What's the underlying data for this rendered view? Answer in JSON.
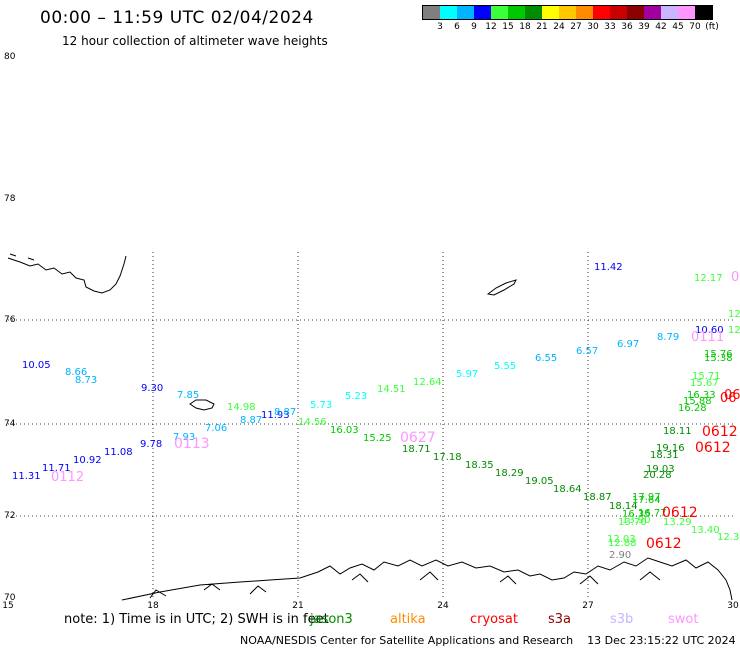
{
  "header": {
    "title": "00:00 – 11:59 UTC 02/04/2024",
    "subtitle": "12 hour collection of altimeter wave heights"
  },
  "legend": {
    "colors": [
      "#7f7f7f",
      "#00ffff",
      "#00b4ff",
      "#0000ff",
      "#3cff3c",
      "#00c800",
      "#008c00",
      "#ffff00",
      "#ffc800",
      "#ff8c00",
      "#ff0000",
      "#c80000",
      "#8b0000",
      "#a000a0",
      "#c8b4ff",
      "#ff96ff",
      "#000000"
    ],
    "labels": [
      "3",
      "6",
      "9",
      "12",
      "15",
      "18",
      "21",
      "24",
      "27",
      "30",
      "33",
      "36",
      "39",
      "42",
      "45",
      "70",
      "(ft)"
    ]
  },
  "axes": {
    "lat_labels": [
      "80",
      "78",
      "76",
      "74",
      "72",
      "70"
    ],
    "lon_labels": [
      "15",
      "18",
      "21",
      "24",
      "27",
      "30"
    ]
  },
  "observations": [
    {
      "v": "10.05",
      "c": "#0000ff"
    },
    {
      "v": "8.66",
      "c": "#00b4ff"
    },
    {
      "v": "8.73",
      "c": "#00b4ff"
    },
    {
      "v": "9.30",
      "c": "#0000ff"
    },
    {
      "v": "7.85",
      "c": "#00b4ff"
    },
    {
      "v": "14.98",
      "c": "#3cff3c"
    },
    {
      "v": "11.93",
      "c": "#0000ff"
    },
    {
      "v": "8.87",
      "c": "#00b4ff"
    },
    {
      "v": "8.87",
      "c": "#00b4ff"
    },
    {
      "v": "5.73",
      "c": "#00ffff"
    },
    {
      "v": "5.23",
      "c": "#00ffff"
    },
    {
      "v": "14.51",
      "c": "#3cff3c"
    },
    {
      "v": "12.64",
      "c": "#3cff3c"
    },
    {
      "v": "5.97",
      "c": "#00ffff"
    },
    {
      "v": "5.55",
      "c": "#00ffff"
    },
    {
      "v": "6.55",
      "c": "#00b4ff"
    },
    {
      "v": "6.57",
      "c": "#00b4ff"
    },
    {
      "v": "6.97",
      "c": "#00b4ff"
    },
    {
      "v": "8.79",
      "c": "#00b4ff"
    },
    {
      "v": "10.60",
      "c": "#0000ff"
    },
    {
      "v": "11.42",
      "c": "#0000ff"
    },
    {
      "v": "12.17",
      "c": "#3cff3c"
    },
    {
      "v": "7.93",
      "c": "#00b4ff"
    },
    {
      "v": "7.06",
      "c": "#00b4ff"
    },
    {
      "v": "14.56",
      "c": "#3cff3c"
    },
    {
      "v": "16.03",
      "c": "#00c800"
    },
    {
      "v": "15.25",
      "c": "#00c800"
    },
    {
      "v": "18.71",
      "c": "#008c00"
    },
    {
      "v": "17.18",
      "c": "#008c00"
    },
    {
      "v": "18.35",
      "c": "#008c00"
    },
    {
      "v": "18.29",
      "c": "#008c00"
    },
    {
      "v": "19.05",
      "c": "#008c00"
    },
    {
      "v": "18.64",
      "c": "#008c00"
    },
    {
      "v": "18.87",
      "c": "#008c00"
    },
    {
      "v": "9.78",
      "c": "#0000ff"
    },
    {
      "v": "11.08",
      "c": "#0000ff"
    },
    {
      "v": "10.92",
      "c": "#0000ff"
    },
    {
      "v": "11.71",
      "c": "#0000ff"
    },
    {
      "v": "11.31",
      "c": "#0000ff"
    },
    {
      "v": "18.11",
      "c": "#008c00"
    },
    {
      "v": "19.16",
      "c": "#008c00"
    },
    {
      "v": "18.31",
      "c": "#008c00"
    },
    {
      "v": "19.03",
      "c": "#008c00"
    },
    {
      "v": "20.28",
      "c": "#008c00"
    },
    {
      "v": "18.14",
      "c": "#008c00"
    },
    {
      "v": "17.97",
      "c": "#00c800"
    },
    {
      "v": "17.64",
      "c": "#00c800"
    },
    {
      "v": "16.35",
      "c": "#00c800"
    },
    {
      "v": "16.77",
      "c": "#00c800"
    },
    {
      "v": "13.70",
      "c": "#3cff3c"
    },
    {
      "v": "13.90",
      "c": "#3cff3c"
    },
    {
      "v": "13.29",
      "c": "#3cff3c"
    },
    {
      "v": "13.40",
      "c": "#3cff3c"
    },
    {
      "v": "12.30",
      "c": "#3cff3c"
    },
    {
      "v": "12.03",
      "c": "#3cff3c"
    },
    {
      "v": "12.88",
      "c": "#3cff3c"
    },
    {
      "v": "2.90",
      "c": "#7f7f7f"
    },
    {
      "v": "15.71",
      "c": "#3cff3c"
    },
    {
      "v": "15.67",
      "c": "#3cff3c"
    },
    {
      "v": "15.76",
      "c": "#00c800"
    },
    {
      "v": "15.38",
      "c": "#00c800"
    },
    {
      "v": "16.33",
      "c": "#00c800"
    },
    {
      "v": "15.88",
      "c": "#00c800"
    },
    {
      "v": "16.28",
      "c": "#00c800"
    },
    {
      "v": "12",
      "c": "#3cff3c"
    },
    {
      "v": "12",
      "c": "#3cff3c"
    }
  ],
  "pass_times": [
    {
      "v": "0113",
      "c": "#ff96ff"
    },
    {
      "v": "0112",
      "c": "#ff96ff"
    },
    {
      "v": "0627",
      "c": "#ff96ff"
    },
    {
      "v": "0111",
      "c": "#ff96ff"
    },
    {
      "v": "0",
      "c": "#ff96ff"
    },
    {
      "v": "0612",
      "c": "#ff0000"
    },
    {
      "v": "0612",
      "c": "#ff0000"
    },
    {
      "v": "0612",
      "c": "#ff0000"
    },
    {
      "v": "0612",
      "c": "#ff0000"
    },
    {
      "v": "06",
      "c": "#ff0000"
    },
    {
      "v": "06",
      "c": "#ff0000"
    }
  ],
  "footer": {
    "note": "note:  1) Time is in UTC;  2) SWH is in feet",
    "satellites": [
      {
        "name": "jason3",
        "color": "#008c00"
      },
      {
        "name": "altika",
        "color": "#ff8c00"
      },
      {
        "name": "cryosat",
        "color": "#ff0000"
      },
      {
        "name": "s3a",
        "color": "#8b0000"
      },
      {
        "name": "s3b",
        "color": "#c8b4ff"
      },
      {
        "name": "swot",
        "color": "#ff96ff"
      }
    ],
    "credit": "NOAA/NESDIS Center for Satellite Applications and Research",
    "timestamp": "13 Dec 23:15:22 UTC 2024"
  }
}
